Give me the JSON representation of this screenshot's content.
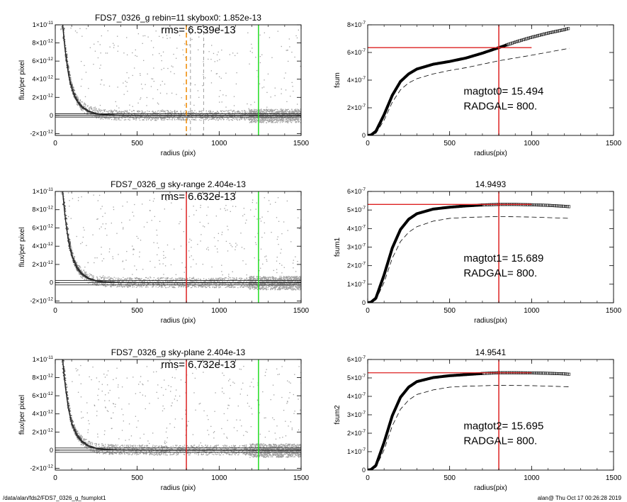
{
  "footer": {
    "path": "/data/alan/fds2/FDS7_0326_g_fsumplot1",
    "stamp": "alan@  Thu Oct 17 00:26:28 2019"
  },
  "colors": {
    "red": "#dd2222",
    "green": "#22dd22",
    "orange": "#ee8800",
    "scatter": "#a0a0a0",
    "profile": "#222222"
  },
  "chart_data": [
    {
      "type": "scatter",
      "title": "FDS7_0326_g rebin=11    skybox0:  1.852e-13",
      "annotation": "rms= 6.539e-13",
      "xlabel": "radius (pix)",
      "ylabel": "flux/per pixel",
      "xlim": [
        0,
        1500
      ],
      "ylim": [
        -2.2e-12,
        1e-11
      ],
      "xticks": [
        "0",
        "500",
        "1000",
        "1500"
      ],
      "yticks": [
        {
          "v": 1e-11,
          "m": "1×10",
          "e": "-11"
        },
        {
          "v": 8e-12,
          "m": "8×10",
          "e": "-12"
        },
        {
          "v": 6e-12,
          "m": "6×10",
          "e": "-12"
        },
        {
          "v": 4e-12,
          "m": "4×10",
          "e": "-12"
        },
        {
          "v": 2e-12,
          "m": "2×10",
          "e": "-12"
        },
        {
          "v": 0,
          "m": "0",
          "e": ""
        },
        {
          "v": -2e-12,
          "m": "-2×10",
          "e": "-12"
        }
      ],
      "profile": {
        "x": [
          45,
          60,
          80,
          100,
          130,
          160,
          200,
          250,
          300,
          400,
          600,
          1000,
          1500
        ],
        "y": [
          1e-11,
          7.2e-12,
          4.6e-12,
          3e-12,
          1.7e-12,
          1e-12,
          5e-13,
          2.2e-13,
          1e-13,
          2e-14,
          0,
          0,
          0
        ]
      },
      "hlines": [
        1.852e-13,
        -1.852e-13
      ],
      "vlines": [
        {
          "x": 800,
          "color": "orange",
          "dash": true
        },
        {
          "x": 825,
          "color": "gray",
          "dash": true
        },
        {
          "x": 905,
          "color": "gray",
          "dash": true
        },
        {
          "x": 1240,
          "color": "green",
          "dash": false
        }
      ]
    },
    {
      "type": "line",
      "title": "",
      "annotations": [
        "magtot0=  15.494",
        "RADGAL=     800."
      ],
      "xlabel": "radius(pix)",
      "ylabel": "fsum",
      "xlim": [
        0,
        1500
      ],
      "ylim": [
        0,
        8e-07
      ],
      "xticks": [
        "0",
        "500",
        "1000",
        "1500"
      ],
      "yticks": [
        {
          "v": 8e-07,
          "m": "8×10",
          "e": "-7"
        },
        {
          "v": 6e-07,
          "m": "6×10",
          "e": "-7"
        },
        {
          "v": 4e-07,
          "m": "4×10",
          "e": "-7"
        },
        {
          "v": 2e-07,
          "m": "2×10",
          "e": "-7"
        },
        {
          "v": 0,
          "m": "0",
          "e": ""
        }
      ],
      "curve": {
        "x": [
          0,
          20,
          50,
          100,
          150,
          200,
          250,
          300,
          400,
          500,
          600,
          700,
          800,
          900,
          1000,
          1100,
          1200,
          1230
        ],
        "y": [
          0,
          3e-09,
          3e-08,
          1.5e-07,
          2.9e-07,
          3.9e-07,
          4.45e-07,
          4.8e-07,
          5.15e-07,
          5.35e-07,
          5.6e-07,
          5.95e-07,
          6.35e-07,
          6.75e-07,
          7.1e-07,
          7.4e-07,
          7.65e-07,
          7.75e-07
        ]
      },
      "curve_end_markers_from": 850,
      "dashed": {
        "x": [
          0,
          50,
          100,
          150,
          200,
          250,
          300,
          400,
          500,
          600,
          800,
          1000,
          1230
        ],
        "y": [
          0,
          1.5e-08,
          1.1e-07,
          2.4e-07,
          3.3e-07,
          3.8e-07,
          4.1e-07,
          4.45e-07,
          4.7e-07,
          4.9e-07,
          5.4e-07,
          5.8e-07,
          6.3e-07
        ]
      },
      "hline": {
        "y": 6.35e-07,
        "x0": 0,
        "x1": 1000
      },
      "vline": 800
    },
    {
      "type": "scatter",
      "title": "FDS7_0326_g sky-range  2.404e-13",
      "annotation": "rms= 6.632e-13",
      "xlabel": "radius (pix)",
      "ylabel": "flux/per pixel",
      "xlim": [
        0,
        1500
      ],
      "ylim": [
        -2.2e-12,
        1e-11
      ],
      "xticks": [
        "0",
        "500",
        "1000",
        "1500"
      ],
      "yticks": [
        {
          "v": 1e-11,
          "m": "1×10",
          "e": "-11"
        },
        {
          "v": 8e-12,
          "m": "8×10",
          "e": "-12"
        },
        {
          "v": 6e-12,
          "m": "6×10",
          "e": "-12"
        },
        {
          "v": 4e-12,
          "m": "4×10",
          "e": "-12"
        },
        {
          "v": 2e-12,
          "m": "2×10",
          "e": "-12"
        },
        {
          "v": 0,
          "m": "0",
          "e": ""
        },
        {
          "v": -2e-12,
          "m": "-2×10",
          "e": "-12"
        }
      ],
      "profile": {
        "x": [
          45,
          60,
          80,
          100,
          130,
          160,
          200,
          250,
          300,
          400,
          600,
          1000,
          1500
        ],
        "y": [
          1e-11,
          7.2e-12,
          4.6e-12,
          3e-12,
          1.7e-12,
          1e-12,
          5e-13,
          2.2e-13,
          1e-13,
          2e-14,
          0,
          0,
          0
        ]
      },
      "hlines": [
        2.404e-13,
        -2.404e-13
      ],
      "vlines": [
        {
          "x": 800,
          "color": "red",
          "dash": false
        },
        {
          "x": 1240,
          "color": "green",
          "dash": false
        }
      ]
    },
    {
      "type": "line",
      "title": "14.9493",
      "annotations": [
        "magtot1=  15.689",
        "RADGAL=     800."
      ],
      "xlabel": "radius(pix)",
      "ylabel": "fsum1",
      "xlim": [
        0,
        1500
      ],
      "ylim": [
        0,
        6e-07
      ],
      "xticks": [
        "0",
        "500",
        "1000",
        "1500"
      ],
      "yticks": [
        {
          "v": 6e-07,
          "m": "6×10",
          "e": "-7"
        },
        {
          "v": 5e-07,
          "m": "5×10",
          "e": "-7"
        },
        {
          "v": 4e-07,
          "m": "4×10",
          "e": "-7"
        },
        {
          "v": 3e-07,
          "m": "3×10",
          "e": "-7"
        },
        {
          "v": 2e-07,
          "m": "2×10",
          "e": "-7"
        },
        {
          "v": 1e-07,
          "m": "1×10",
          "e": "-7"
        },
        {
          "v": 0,
          "m": "0",
          "e": ""
        }
      ],
      "curve": {
        "x": [
          0,
          20,
          50,
          100,
          150,
          200,
          250,
          300,
          400,
          500,
          600,
          700,
          800,
          900,
          1000,
          1100,
          1200,
          1230
        ],
        "y": [
          0,
          3e-09,
          2.5e-08,
          1.5e-07,
          2.95e-07,
          3.95e-07,
          4.5e-07,
          4.8e-07,
          5.05e-07,
          5.15e-07,
          5.22e-07,
          5.27e-07,
          5.3e-07,
          5.3e-07,
          5.28e-07,
          5.25e-07,
          5.2e-07,
          5.18e-07
        ]
      },
      "curve_end_markers_from": 700,
      "dashed": {
        "x": [
          0,
          50,
          100,
          150,
          200,
          250,
          300,
          400,
          500,
          600,
          800,
          1000,
          1230
        ],
        "y": [
          0,
          1.5e-08,
          1.1e-07,
          2.4e-07,
          3.3e-07,
          3.8e-07,
          4.1e-07,
          4.4e-07,
          4.55e-07,
          4.6e-07,
          4.65e-07,
          4.62e-07,
          4.55e-07
        ]
      },
      "hline": {
        "y": 5.3e-07,
        "x0": 0,
        "x1": 1000
      },
      "vline": 800
    },
    {
      "type": "scatter",
      "title": "FDS7_0326_g sky-plane  2.404e-13",
      "annotation": "rms= 6.732e-13",
      "xlabel": "radius (pix)",
      "ylabel": "flux/per pixel",
      "xlim": [
        0,
        1500
      ],
      "ylim": [
        -2.2e-12,
        1e-11
      ],
      "xticks": [
        "0",
        "500",
        "1000",
        "1500"
      ],
      "yticks": [
        {
          "v": 1e-11,
          "m": "1×10",
          "e": "-11"
        },
        {
          "v": 8e-12,
          "m": "8×10",
          "e": "-12"
        },
        {
          "v": 6e-12,
          "m": "6×10",
          "e": "-12"
        },
        {
          "v": 4e-12,
          "m": "4×10",
          "e": "-12"
        },
        {
          "v": 2e-12,
          "m": "2×10",
          "e": "-12"
        },
        {
          "v": 0,
          "m": "0",
          "e": ""
        },
        {
          "v": -2e-12,
          "m": "-2×10",
          "e": "-12"
        }
      ],
      "profile": {
        "x": [
          45,
          60,
          80,
          100,
          130,
          160,
          200,
          250,
          300,
          400,
          600,
          1000,
          1500
        ],
        "y": [
          1e-11,
          7.2e-12,
          4.6e-12,
          3e-12,
          1.7e-12,
          1e-12,
          5e-13,
          2.2e-13,
          1e-13,
          2e-14,
          0,
          0,
          0
        ]
      },
      "hlines": [
        2.404e-13,
        -2.404e-13
      ],
      "vlines": [
        {
          "x": 800,
          "color": "red",
          "dash": false
        },
        {
          "x": 1240,
          "color": "green",
          "dash": false
        }
      ]
    },
    {
      "type": "line",
      "title": "14.9541",
      "annotations": [
        "magtot2=  15.695",
        "RADGAL=     800."
      ],
      "xlabel": "radius(pix)",
      "ylabel": "fsum2",
      "xlim": [
        0,
        1500
      ],
      "ylim": [
        0,
        6e-07
      ],
      "xticks": [
        "0",
        "500",
        "1000",
        "1500"
      ],
      "yticks": [
        {
          "v": 6e-07,
          "m": "6×10",
          "e": "-7"
        },
        {
          "v": 5e-07,
          "m": "5×10",
          "e": "-7"
        },
        {
          "v": 4e-07,
          "m": "4×10",
          "e": "-7"
        },
        {
          "v": 3e-07,
          "m": "3×10",
          "e": "-7"
        },
        {
          "v": 2e-07,
          "m": "2×10",
          "e": "-7"
        },
        {
          "v": 1e-07,
          "m": "1×10",
          "e": "-7"
        },
        {
          "v": 0,
          "m": "0",
          "e": ""
        }
      ],
      "curve": {
        "x": [
          0,
          20,
          50,
          100,
          150,
          200,
          250,
          300,
          400,
          500,
          600,
          700,
          800,
          900,
          1000,
          1100,
          1200,
          1230
        ],
        "y": [
          0,
          3e-09,
          2.5e-08,
          1.5e-07,
          2.95e-07,
          3.95e-07,
          4.5e-07,
          4.8e-07,
          5.02e-07,
          5.12e-07,
          5.18e-07,
          5.24e-07,
          5.28e-07,
          5.28e-07,
          5.27e-07,
          5.25e-07,
          5.22e-07,
          5.2e-07
        ]
      },
      "curve_end_markers_from": 700,
      "dashed": {
        "x": [
          0,
          50,
          100,
          150,
          200,
          250,
          300,
          400,
          500,
          600,
          800,
          1000,
          1230
        ],
        "y": [
          0,
          1.5e-08,
          1.1e-07,
          2.4e-07,
          3.3e-07,
          3.8e-07,
          4.1e-07,
          4.35e-07,
          4.5e-07,
          4.55e-07,
          4.6e-07,
          4.58e-07,
          4.52e-07
        ]
      },
      "hline": {
        "y": 5.28e-07,
        "x0": 0,
        "x1": 1000
      },
      "vline": 800
    }
  ]
}
